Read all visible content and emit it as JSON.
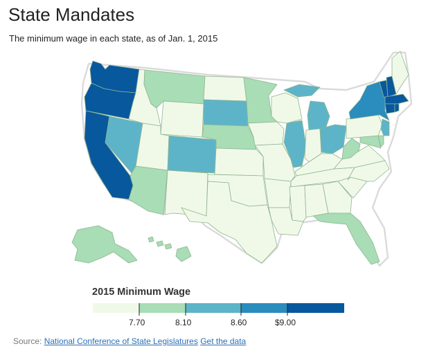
{
  "header": {
    "title": "State Mandates",
    "subtitle": "The minimum wage in each state, as of Jan. 1, 2015"
  },
  "legend": {
    "title": "2015 Minimum Wage",
    "bins": [
      {
        "color": "#f0f9e8"
      },
      {
        "color": "#a8ddb5"
      },
      {
        "color": "#5db4c9"
      },
      {
        "color": "#2b8cbe"
      },
      {
        "color": "#08589e"
      }
    ],
    "tick_labels": [
      "7.70",
      "8.10",
      "8.60",
      "$9.00"
    ]
  },
  "source": {
    "prefix": "Source:",
    "link1": "National Conference of State Legislatures",
    "link2": "Get the data"
  }
}
